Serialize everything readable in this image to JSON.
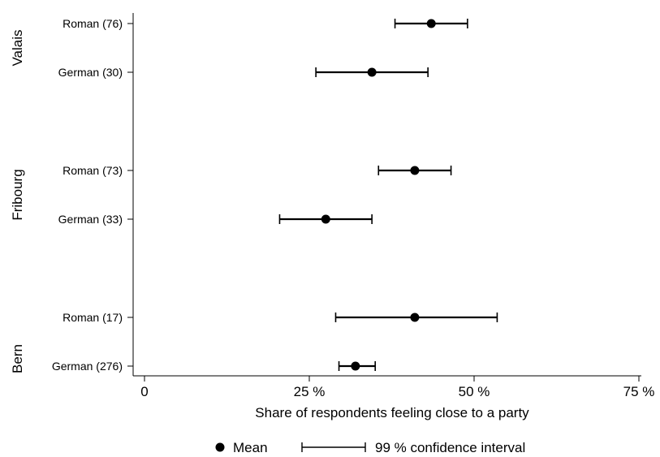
{
  "chart_data": {
    "type": "scatter",
    "xlabel": "Share of respondents feeling close to a party",
    "xlim": [
      0,
      75
    ],
    "xticks": [
      {
        "value": 0,
        "label": "0"
      },
      {
        "value": 25,
        "label": "25 %"
      },
      {
        "value": 50,
        "label": "50 %"
      },
      {
        "value": 75,
        "label": "75 %"
      }
    ],
    "grid": false,
    "groups": [
      "Valais",
      "Fribourg",
      "Bern"
    ],
    "rows": [
      {
        "group": "Valais",
        "label": "Roman (76)",
        "mean": 43.5,
        "ci_low": 38.0,
        "ci_high": 49.0
      },
      {
        "group": "Valais",
        "label": "German (30)",
        "mean": 34.5,
        "ci_low": 26.0,
        "ci_high": 43.0
      },
      {
        "group": "Fribourg",
        "label": "Roman (73)",
        "mean": 41.0,
        "ci_low": 35.5,
        "ci_high": 46.5
      },
      {
        "group": "Fribourg",
        "label": "German (33)",
        "mean": 27.5,
        "ci_low": 20.5,
        "ci_high": 34.5
      },
      {
        "group": "Bern",
        "label": "Roman (17)",
        "mean": 41.0,
        "ci_low": 29.0,
        "ci_high": 53.5
      },
      {
        "group": "Bern",
        "label": "German (276)",
        "mean": 32.0,
        "ci_low": 29.5,
        "ci_high": 35.0
      }
    ],
    "legend": {
      "position": "bottom",
      "items": [
        "Mean",
        "99 % confidence interval"
      ]
    }
  }
}
